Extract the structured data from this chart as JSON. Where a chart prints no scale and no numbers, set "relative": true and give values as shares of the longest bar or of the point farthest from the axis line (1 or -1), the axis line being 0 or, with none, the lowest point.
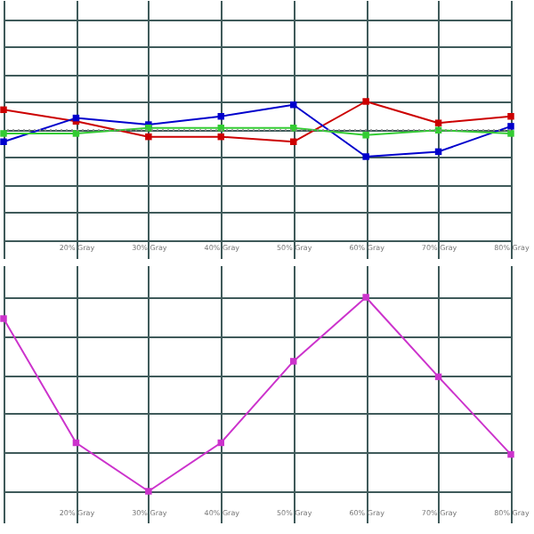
{
  "chart_data": [
    {
      "type": "line",
      "relative": true,
      "categories": [
        null,
        "20% Gray",
        "30% Gray",
        "40% Gray",
        "50% Gray",
        "60% Gray",
        "70% Gray",
        "80% Gray"
      ],
      "series": [
        {
          "color": "#cc0000",
          "values": [
            0.85,
            0.64,
            0.36,
            0.36,
            0.27,
            1,
            0.61,
            0.73
          ]
        },
        {
          "color": "#0000cc",
          "values": [
            0.27,
            0.7,
            0.58,
            0.73,
            0.94,
            0,
            0.09,
            0.55
          ]
        },
        {
          "color": "#33cc33",
          "values": [
            0.42,
            0.42,
            0.52,
            0.52,
            0.52,
            0.39,
            0.48,
            0.42
          ]
        }
      ],
      "ref_lines": [
        {
          "axis": "y",
          "value": 0.48,
          "color": "#888888",
          "line_style": "dotted"
        }
      ],
      "marker": "square",
      "grid": true,
      "tick_labels": "x"
    },
    {
      "type": "line",
      "relative": true,
      "categories": [
        null,
        "20% Gray",
        "30% Gray",
        "40% Gray",
        "50% Gray",
        "60% Gray",
        "70% Gray",
        "80% Gray"
      ],
      "series": [
        {
          "color": "#cc33cc",
          "values": [
            0.89,
            0.25,
            0,
            0.25,
            0.67,
            1,
            0.59,
            0.19
          ]
        }
      ],
      "marker": "square",
      "grid": true,
      "tick_labels": "x"
    }
  ]
}
